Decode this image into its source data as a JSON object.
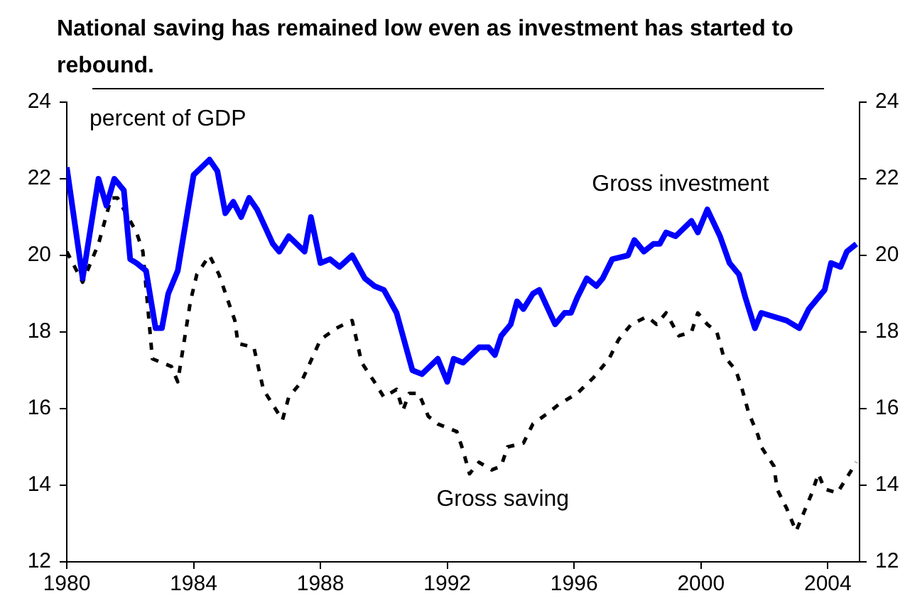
{
  "chart_data": {
    "type": "line",
    "title": "National saving has remained low even as investment has started to rebound.",
    "ylabel": "percent of GDP",
    "xlim": [
      1980,
      2005
    ],
    "xticks": [
      1980,
      1984,
      1988,
      1992,
      1996,
      2000,
      2004
    ],
    "ylim": [
      12,
      24
    ],
    "yticks": [
      12,
      14,
      16,
      18,
      20,
      22,
      24
    ],
    "y2lim": [
      12,
      24
    ],
    "y2ticks": [
      12,
      14,
      16,
      18,
      20,
      22,
      24
    ],
    "grid": false,
    "legend": false,
    "marker": "none",
    "series": [
      {
        "name": "Gross investment",
        "color": "#0000ff",
        "line_style": "solid",
        "x": [
          1980.0,
          1980.5,
          1981.0,
          1981.25,
          1981.5,
          1981.8,
          1982.0,
          1982.2,
          1982.5,
          1982.8,
          1983.0,
          1983.2,
          1983.5,
          1984.0,
          1984.5,
          1984.75,
          1985.0,
          1985.25,
          1985.5,
          1985.75,
          1986.0,
          1986.5,
          1986.7,
          1987.0,
          1987.5,
          1987.7,
          1988.0,
          1988.3,
          1988.6,
          1989.0,
          1989.4,
          1989.7,
          1990.0,
          1990.4,
          1990.9,
          1991.2,
          1991.7,
          1992.0,
          1992.2,
          1992.5,
          1993.0,
          1993.3,
          1993.5,
          1993.7,
          1994.0,
          1994.2,
          1994.4,
          1994.7,
          1994.9,
          1995.4,
          1995.7,
          1995.9,
          1996.1,
          1996.4,
          1996.7,
          1996.9,
          1997.2,
          1997.7,
          1997.9,
          1998.2,
          1998.5,
          1998.7,
          1998.9,
          1999.2,
          1999.7,
          1999.9,
          2000.2,
          2000.6,
          2000.9,
          2001.2,
          2001.4,
          2001.7,
          2001.9,
          2002.7,
          2003.1,
          2003.4,
          2003.9,
          2004.1,
          2004.4,
          2004.6,
          2004.9
        ],
        "values": [
          22.3,
          19.4,
          22.0,
          21.3,
          22.0,
          21.7,
          19.9,
          19.8,
          19.6,
          18.1,
          18.1,
          19.0,
          19.6,
          22.1,
          22.5,
          22.2,
          21.1,
          21.4,
          21.0,
          21.5,
          21.2,
          20.3,
          20.1,
          20.5,
          20.1,
          21.0,
          19.8,
          19.9,
          19.7,
          20.0,
          19.4,
          19.2,
          19.1,
          18.5,
          17.0,
          16.9,
          17.3,
          16.7,
          17.3,
          17.2,
          17.6,
          17.6,
          17.4,
          17.9,
          18.2,
          18.8,
          18.6,
          19.0,
          19.1,
          18.2,
          18.5,
          18.5,
          18.9,
          19.4,
          19.2,
          19.4,
          19.9,
          20.0,
          20.4,
          20.1,
          20.3,
          20.3,
          20.6,
          20.5,
          20.9,
          20.6,
          21.2,
          20.5,
          19.8,
          19.5,
          18.9,
          18.1,
          18.5,
          18.3,
          18.1,
          18.6,
          19.1,
          19.8,
          19.7,
          20.1,
          20.3
        ]
      },
      {
        "name": "Gross saving",
        "color": "#000000",
        "line_style": "dashed",
        "x": [
          1980.0,
          1980.5,
          1981.0,
          1981.4,
          1981.6,
          1982.2,
          1982.4,
          1982.7,
          1983.3,
          1983.5,
          1983.9,
          1984.1,
          1984.5,
          1984.8,
          1985.3,
          1985.4,
          1985.9,
          1986.2,
          1986.8,
          1987.0,
          1987.4,
          1988.0,
          1988.5,
          1989.0,
          1989.3,
          1989.7,
          1990.0,
          1990.4,
          1990.6,
          1990.8,
          1991.1,
          1991.4,
          1991.7,
          1992.3,
          1992.5,
          1992.7,
          1993.0,
          1993.4,
          1993.7,
          1993.9,
          1994.4,
          1994.7,
          1995.2,
          1995.5,
          1996.1,
          1996.6,
          1997.1,
          1997.4,
          1997.8,
          1998.3,
          1998.6,
          1998.9,
          1999.3,
          1999.7,
          1999.9,
          2000.2,
          2000.5,
          2000.7,
          2001.1,
          2001.3,
          2001.5,
          2001.8,
          2001.9,
          2002.3,
          2002.4,
          2002.7,
          2003.0,
          2003.2,
          2003.5,
          2003.7,
          2003.9,
          2004.3,
          2004.6,
          2004.9
        ],
        "values": [
          20.1,
          19.3,
          20.3,
          21.5,
          21.5,
          20.6,
          20.1,
          17.3,
          17.1,
          16.7,
          18.8,
          19.5,
          20.0,
          19.5,
          18.3,
          17.7,
          17.6,
          16.5,
          15.7,
          16.3,
          16.7,
          17.8,
          18.1,
          18.3,
          17.2,
          16.7,
          16.3,
          16.5,
          15.95,
          16.4,
          16.4,
          15.8,
          15.6,
          15.4,
          14.9,
          14.3,
          14.6,
          14.4,
          14.5,
          15.0,
          15.1,
          15.6,
          15.9,
          16.1,
          16.4,
          16.8,
          17.3,
          17.8,
          18.2,
          18.4,
          18.2,
          18.5,
          17.9,
          18.0,
          18.5,
          18.2,
          18.0,
          17.4,
          17.0,
          16.5,
          15.9,
          15.3,
          15.0,
          14.5,
          13.9,
          13.4,
          12.8,
          13.2,
          13.8,
          14.3,
          13.9,
          13.8,
          14.2,
          14.6
        ]
      }
    ]
  }
}
